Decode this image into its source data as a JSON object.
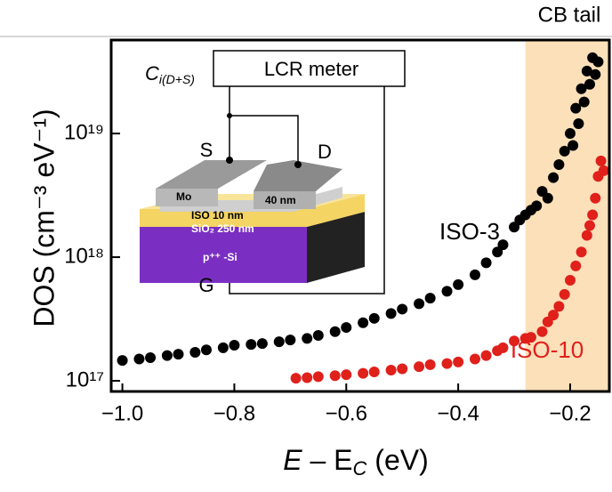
{
  "chart_data": {
    "type": "scatter",
    "x_label": [
      "E",
      " – E",
      "C",
      " (eV)"
    ],
    "y_label": "DOS (cm⁻³ eV⁻¹)",
    "xlim": [
      -1.02,
      -0.13
    ],
    "ylim": [
      8.2e+16,
      5.7e+19
    ],
    "log_y": true,
    "xticks": [
      {
        "value": -1.0,
        "label": "−1.0"
      },
      {
        "value": -0.8,
        "label": "−0.8"
      },
      {
        "value": -0.6,
        "label": "−0.6"
      },
      {
        "value": -0.4,
        "label": "−0.4"
      },
      {
        "value": -0.2,
        "label": "−0.2"
      }
    ],
    "yticks": [
      {
        "value": 1e+17,
        "label": "10¹⁷"
      },
      {
        "value": 1e+18,
        "label": "10¹⁸"
      },
      {
        "value": 1e+19,
        "label": "10¹⁹"
      }
    ],
    "highlight": {
      "x_range": [
        -0.28,
        -0.13
      ],
      "label": "CB tail",
      "color": "#fce0b9"
    },
    "series": [
      {
        "name": "ISO-3",
        "color": "#000000",
        "x": [
          -1.0,
          -0.97,
          -0.95,
          -0.92,
          -0.9,
          -0.87,
          -0.85,
          -0.82,
          -0.8,
          -0.77,
          -0.75,
          -0.72,
          -0.7,
          -0.67,
          -0.65,
          -0.62,
          -0.6,
          -0.57,
          -0.55,
          -0.52,
          -0.5,
          -0.47,
          -0.45,
          -0.42,
          -0.4,
          -0.37,
          -0.35,
          -0.33,
          -0.32,
          -0.3,
          -0.29,
          -0.28,
          -0.27,
          -0.26,
          -0.25,
          -0.24,
          -0.23,
          -0.22,
          -0.21,
          -0.2,
          -0.195,
          -0.19,
          -0.185,
          -0.18,
          -0.175,
          -0.17,
          -0.165,
          -0.16,
          -0.155,
          -0.15
        ],
        "values": [
          1.46e+17,
          1.5e+17,
          1.54e+17,
          1.6e+17,
          1.64e+17,
          1.7e+17,
          1.78e+17,
          1.85e+17,
          1.94e+17,
          1.97e+17,
          2e+17,
          2.07e+17,
          2.14e+17,
          2.2e+17,
          2.33e+17,
          2.5e+17,
          2.7e+17,
          2.95e+17,
          3.2e+17,
          3.5e+17,
          3.8e+17,
          4.2e+17,
          4.66e+17,
          5.3e+17,
          6e+17,
          7.2e+17,
          9e+17,
          1.1e+18,
          1.26e+18,
          1.75e+18,
          2e+18,
          2.2e+18,
          2.4e+18,
          2.6e+18,
          3.4e+18,
          3e+18,
          4.4e+18,
          5.6e+18,
          7.2e+18,
          1e+19,
          8e+18,
          1.6e+19,
          1.2e+19,
          2.3e+19,
          1.8e+19,
          3.2e+19,
          2.5e+19,
          4.1e+19,
          3e+19,
          3.8e+19
        ]
      },
      {
        "name": "ISO-10",
        "color": "#e0201b",
        "x": [
          -0.69,
          -0.67,
          -0.65,
          -0.62,
          -0.6,
          -0.57,
          -0.55,
          -0.52,
          -0.5,
          -0.47,
          -0.45,
          -0.42,
          -0.4,
          -0.37,
          -0.35,
          -0.33,
          -0.32,
          -0.3,
          -0.28,
          -0.27,
          -0.25,
          -0.24,
          -0.23,
          -0.22,
          -0.21,
          -0.2,
          -0.19,
          -0.18,
          -0.17,
          -0.165,
          -0.16,
          -0.155,
          -0.15,
          -0.145,
          -0.14
        ],
        "values": [
          1.05e+17,
          1.06e+17,
          1.08e+17,
          1.1e+17,
          1.12e+17,
          1.15e+17,
          1.18e+17,
          1.22e+17,
          1.25e+17,
          1.3e+17,
          1.35e+17,
          1.38e+17,
          1.42e+17,
          1.5e+17,
          1.6e+17,
          1.75e+17,
          1.85e+17,
          2.1e+17,
          2.2e+17,
          2.25e+17,
          2.5e+17,
          3e+17,
          3.4e+17,
          4e+17,
          5e+17,
          6.5e+17,
          8.5e+17,
          1.1e+18,
          1.5e+18,
          1.8e+18,
          2.2e+18,
          3e+18,
          4.5e+18,
          6e+18,
          5e+18
        ]
      }
    ],
    "inset": {
      "meter": "LCR meter",
      "cap_symbol": "C",
      "cap_subscript": "i(D+S)",
      "source": "S",
      "drain": "D",
      "gate": "G",
      "metal": "Mo",
      "metal_thickness": "40 nm",
      "channel": "ISO  10 nm",
      "oxide": "SiO₂  250 nm",
      "substrate": "p⁺⁺ -Si"
    }
  }
}
